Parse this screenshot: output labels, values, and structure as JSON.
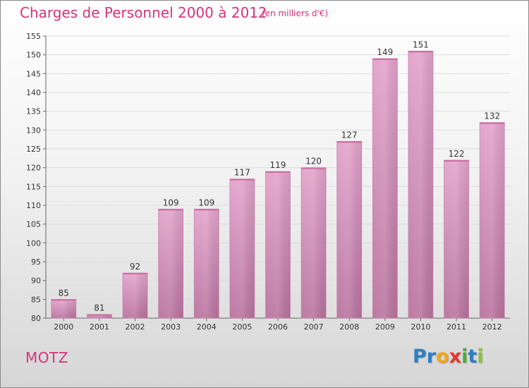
{
  "title": "Charges de Personnel 2000 à 2012",
  "subtitle": "(en milliers d'€)",
  "commune": "MOTZ",
  "logo": {
    "letters": [
      {
        "ch": "P",
        "color": "#2f7fc1"
      },
      {
        "ch": "r",
        "color": "#2f7fc1"
      },
      {
        "ch": "o",
        "color": "#f2a51f"
      },
      {
        "ch": "x",
        "color": "#e23a2e"
      },
      {
        "ch": "i",
        "color": "#4cab3c"
      },
      {
        "ch": "t",
        "color": "#2f7fc1"
      },
      {
        "ch": "i",
        "color": "#8fbf3a"
      }
    ]
  },
  "colors": {
    "bar_top": "#e2a3cb",
    "bar_bottom": "#b8729d",
    "accent": "#d8327a",
    "grid": "#dddddd"
  },
  "chart_data": {
    "type": "bar",
    "title": "Charges de Personnel 2000 à 2012",
    "subtitle": "(en milliers d'€)",
    "categories": [
      "2000",
      "2001",
      "2002",
      "2003",
      "2004",
      "2005",
      "2006",
      "2007",
      "2008",
      "2009",
      "2010",
      "2011",
      "2012"
    ],
    "values": [
      85,
      81,
      92,
      109,
      109,
      117,
      119,
      120,
      127,
      149,
      151,
      122,
      132
    ],
    "ylim": [
      80,
      155
    ],
    "yticks": [
      80,
      85,
      90,
      95,
      100,
      105,
      110,
      115,
      120,
      125,
      130,
      135,
      140,
      145,
      150,
      155
    ],
    "grid": true,
    "legend": "none"
  }
}
